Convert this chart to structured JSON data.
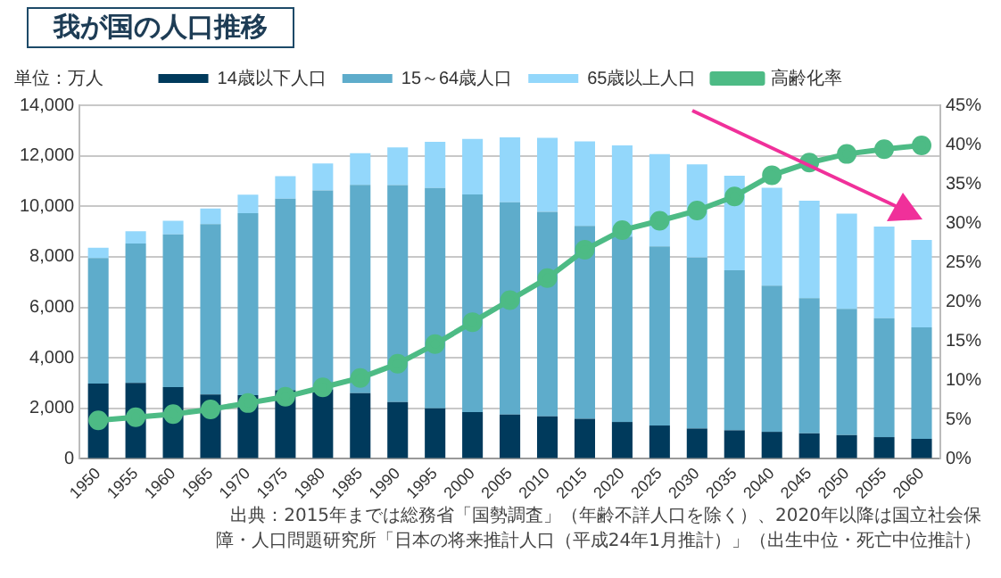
{
  "chart_data": {
    "type": "bar",
    "title": "我が国の人口推移",
    "ylabel": "単位：万人",
    "categories": [
      "1950",
      "1955",
      "1960",
      "1965",
      "1970",
      "1975",
      "1980",
      "1985",
      "1990",
      "1995",
      "2000",
      "2005",
      "2010",
      "2015",
      "2020",
      "2025",
      "2030",
      "2035",
      "2040",
      "2045",
      "2050",
      "2055",
      "2060"
    ],
    "stacked": true,
    "series": [
      {
        "name": "14歳以下人口",
        "color": "#003a5c",
        "values": [
          2980,
          3010,
          2840,
          2550,
          2520,
          2720,
          2750,
          2600,
          2250,
          2000,
          1850,
          1750,
          1680,
          1590,
          1460,
          1320,
          1200,
          1130,
          1070,
          1010,
          940,
          860,
          790
        ]
      },
      {
        "name": "15～64歳人口",
        "color": "#5eaccb",
        "values": [
          4970,
          5520,
          6050,
          6740,
          7210,
          7580,
          7880,
          8250,
          8590,
          8720,
          8620,
          8410,
          8100,
          7630,
          7340,
          7090,
          6770,
          6340,
          5790,
          5350,
          5000,
          4710,
          4420
        ]
      },
      {
        "name": "65歳以上人口",
        "color": "#93d7fb",
        "values": [
          410,
          480,
          540,
          620,
          730,
          890,
          1070,
          1250,
          1490,
          1830,
          2200,
          2570,
          2930,
          3350,
          3610,
          3660,
          3690,
          3740,
          3870,
          3860,
          3770,
          3630,
          3460
        ]
      },
      {
        "name": "高齢化率",
        "type": "line",
        "axis": "y2",
        "color": "#4dbb85",
        "values": [
          4.9,
          5.3,
          5.7,
          6.3,
          7.1,
          7.9,
          9.1,
          10.3,
          12.1,
          14.6,
          17.4,
          20.2,
          23.0,
          26.6,
          29.1,
          30.3,
          31.6,
          33.4,
          36.1,
          37.7,
          38.8,
          39.4,
          39.9
        ]
      }
    ],
    "ylim": [
      0,
      14000
    ],
    "yticks": [
      0,
      {
        "value": 2000,
        "label": "2,000"
      },
      {
        "value": 4000,
        "label": "4,000"
      },
      {
        "value": 6000,
        "label": "6,000"
      },
      {
        "value": 8000,
        "label": "8,000"
      },
      {
        "value": 10000,
        "label": "10,000"
      },
      {
        "value": 12000,
        "label": "12,000"
      },
      {
        "value": 14000,
        "label": "14,000"
      }
    ],
    "y2lim": [
      0,
      45
    ],
    "y2ticks": [
      {
        "value": 0,
        "label": "0%"
      },
      {
        "value": 5,
        "label": "5%"
      },
      {
        "value": 10,
        "label": "10%"
      },
      {
        "value": 15,
        "label": "15%"
      },
      {
        "value": 20,
        "label": "20%"
      },
      {
        "value": 25,
        "label": "25%"
      },
      {
        "value": 30,
        "label": "30%"
      },
      {
        "value": 35,
        "label": "35%"
      },
      {
        "value": 40,
        "label": "40%"
      },
      {
        "value": 45,
        "label": "45%"
      }
    ],
    "grid": "y",
    "legend": "top",
    "marker": "circle",
    "annotations": [
      "出典：2015年までは総務省「国勢調査」（年齢不詳人口を除く）、2020年以降は国立社会保障・人口問題研究所「日本の将来推計人口（平成24年1月推計）」（出生中位・死亡中位推計）"
    ]
  }
}
